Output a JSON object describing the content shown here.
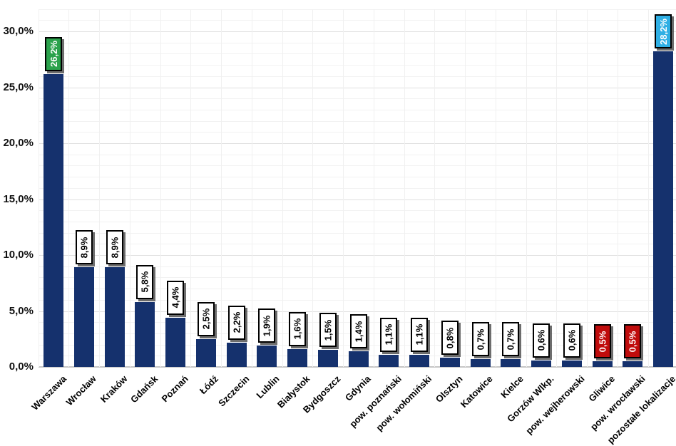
{
  "chart_data": {
    "type": "bar",
    "title": "",
    "xlabel": "",
    "ylabel": "",
    "categories": [
      "Warszawa",
      "Wrocław",
      "Kraków",
      "Gdańsk",
      "Poznań",
      "Łódź",
      "Szczecin",
      "Lublin",
      "Białystok",
      "Bydgoszcz",
      "Gdynia",
      "pow. poznański",
      "pow. wołomiński",
      "Olsztyn",
      "Katowice",
      "Kielce",
      "Gorzów Wlkp.",
      "pow. wejherowski",
      "Gliwice",
      "pow. wrocławski",
      "pozostałe lokalizacje"
    ],
    "values": [
      26.2,
      8.9,
      8.9,
      5.8,
      4.4,
      2.5,
      2.2,
      1.9,
      1.6,
      1.5,
      1.4,
      1.1,
      1.1,
      0.8,
      0.7,
      0.7,
      0.6,
      0.6,
      0.5,
      0.5,
      28.2
    ],
    "value_labels": [
      "26,2%",
      "8,9%",
      "8,9%",
      "5,8%",
      "4,4%",
      "2,5%",
      "2,2%",
      "1,9%",
      "1,6%",
      "1,5%",
      "1,4%",
      "1,1%",
      "1,1%",
      "0,8%",
      "0,7%",
      "0,7%",
      "0,6%",
      "0,6%",
      "0,5%",
      "0,5%",
      "28,2%"
    ],
    "label_box_styles": [
      "green",
      "white",
      "white",
      "white",
      "white",
      "white",
      "white",
      "white",
      "white",
      "white",
      "white",
      "white",
      "white",
      "white",
      "white",
      "white",
      "white",
      "white",
      "red",
      "red",
      "blue"
    ],
    "yticks": [
      {
        "value": 0,
        "label": "0,0%"
      },
      {
        "value": 5,
        "label": "5,0%"
      },
      {
        "value": 10,
        "label": "10,0%"
      },
      {
        "value": 15,
        "label": "15,0%"
      },
      {
        "value": 20,
        "label": "20,0%"
      },
      {
        "value": 25,
        "label": "25,0%"
      },
      {
        "value": 30,
        "label": "30,0%"
      }
    ],
    "ylim": [
      0,
      32.8
    ],
    "grid": {
      "horizontal_minor_step": 1,
      "horizontal_major_step": 5,
      "vertical_category_lines": true
    },
    "legend": "none",
    "colors": {
      "bar": "#15316D",
      "highlight_green": "#2BA24C",
      "highlight_red": "#C00C0C",
      "highlight_blue": "#2FAFE4",
      "value_box_bg": "#FFFFFF",
      "value_box_border": "#000000",
      "grid_minor": "#F2F2F2",
      "grid_major": "#E0E0E0",
      "axis_text": "#111111"
    }
  }
}
